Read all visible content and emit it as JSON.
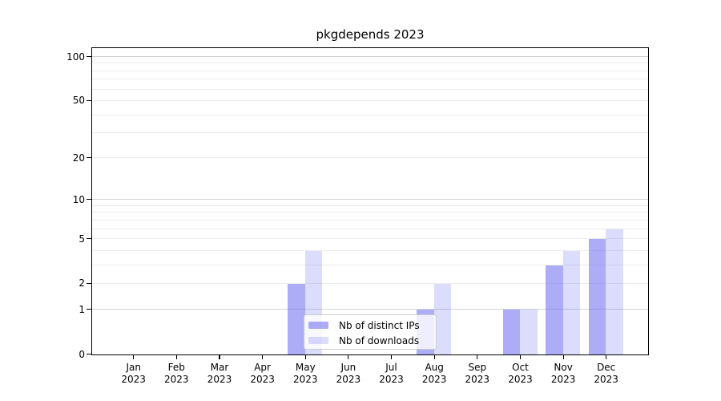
{
  "chart_data": {
    "type": "bar",
    "title": "pkgdepends 2023",
    "categories": [
      "Jan",
      "Feb",
      "Mar",
      "Apr",
      "May",
      "Jun",
      "Jul",
      "Aug",
      "Sep",
      "Oct",
      "Nov",
      "Dec"
    ],
    "category_year": "2023",
    "series": [
      {
        "name": "Nb of distinct IPs",
        "color": "rgba(90,90,240,0.5)",
        "values": [
          0,
          0,
          0,
          0,
          2,
          0,
          0,
          1,
          0,
          1,
          3,
          5
        ]
      },
      {
        "name": "Nb of downloads",
        "color": "rgba(90,90,240,0.21)",
        "values": [
          0,
          0,
          0,
          0,
          4,
          0,
          0,
          2,
          0,
          1,
          4,
          6
        ]
      }
    ],
    "yscale": "log1p",
    "ylim": [
      0,
      100
    ],
    "y_tick_labels": [
      0,
      1,
      2,
      5,
      10,
      20,
      50,
      100
    ],
    "y_major_gridlines": [
      1,
      10,
      100
    ],
    "y_minor_gridlines": [
      2,
      3,
      4,
      5,
      6,
      7,
      8,
      9,
      20,
      30,
      40,
      50,
      60,
      70,
      80,
      90
    ],
    "legend": {
      "position": "lower-center-left",
      "frame": true
    },
    "colors": {
      "grid_major": "#d2d2d2",
      "grid_minor": "#ececec",
      "axis": "#000000"
    }
  }
}
